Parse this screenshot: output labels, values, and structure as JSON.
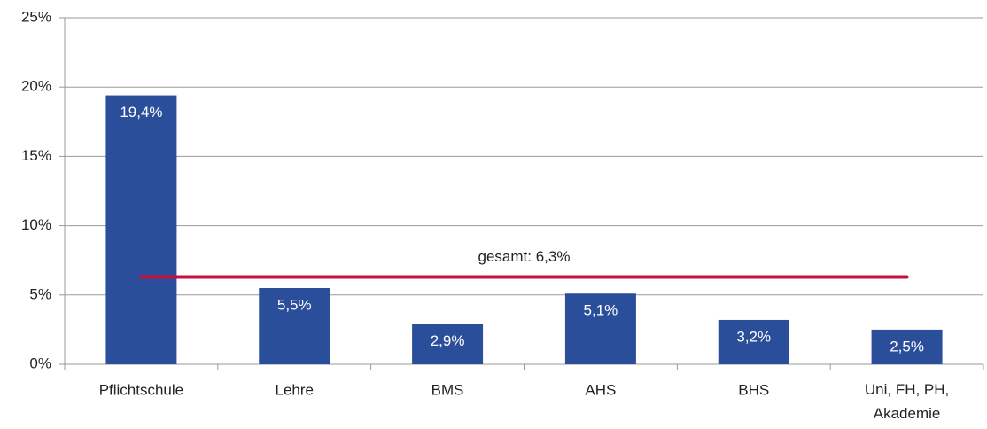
{
  "chart_data": {
    "type": "bar",
    "categories": [
      "Pflichtschule",
      "Lehre",
      "BMS",
      "AHS",
      "BHS",
      "Uni, FH, PH, Akademie"
    ],
    "values": [
      19.4,
      5.5,
      2.9,
      5.1,
      3.2,
      2.5
    ],
    "value_labels": [
      "19,4%",
      "5,5%",
      "2,9%",
      "5,1%",
      "3,2%",
      "2,5%"
    ],
    "color": "#2b4e9b",
    "ylim": [
      0,
      25
    ],
    "yticks": [
      {
        "value": 0,
        "label": "0%"
      },
      {
        "value": 5,
        "label": "5%"
      },
      {
        "value": 10,
        "label": "10%"
      },
      {
        "value": 15,
        "label": "15%"
      },
      {
        "value": 20,
        "label": "20%"
      },
      {
        "value": 25,
        "label": "25%"
      }
    ],
    "grid": true,
    "reference_line": {
      "value": 6.3,
      "label": "gesamt: 6,3%",
      "color": "#c8103e"
    }
  }
}
